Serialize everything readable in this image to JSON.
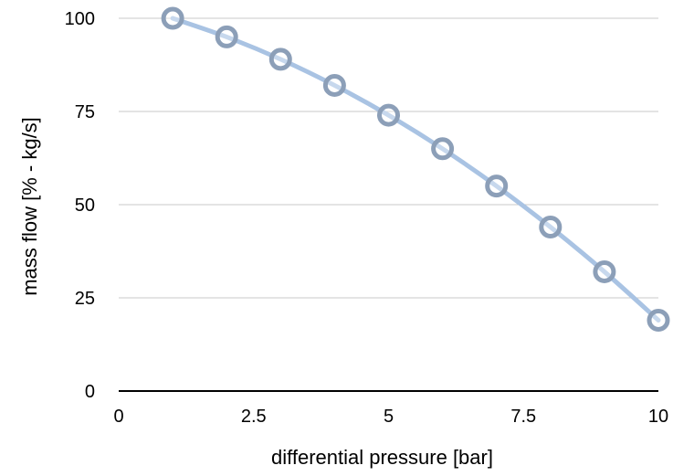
{
  "chart_data": {
    "type": "scatter",
    "title": "",
    "xlabel": "differential pressure [bar]",
    "ylabel": "mass flow [% - kg/s]",
    "xlim": [
      0,
      10
    ],
    "ylim": [
      0,
      100
    ],
    "x_ticks": [
      "0",
      "2.5",
      "5",
      "7.5",
      "10"
    ],
    "y_ticks": [
      "0",
      "25",
      "50",
      "75",
      "100"
    ],
    "grid": "horizontal",
    "legend": "none",
    "smooth_line": true,
    "series": [
      {
        "x": [
          1,
          2,
          3,
          4,
          5,
          6,
          7,
          8,
          9,
          10
        ],
        "values": [
          100,
          95,
          89,
          82,
          74,
          65,
          55,
          44,
          32,
          19
        ],
        "line_color": "#a9c3e3",
        "marker_edge_color": "#8c9fb8",
        "marker_fill": "#ffffff"
      }
    ]
  }
}
